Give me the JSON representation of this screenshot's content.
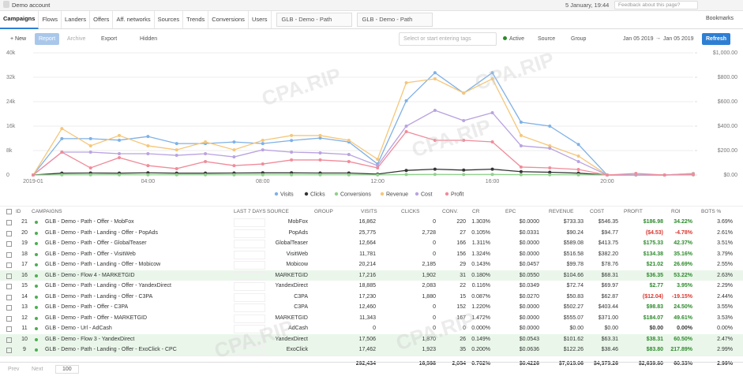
{
  "header": {
    "account": "Demo account",
    "datetime": "5 January, 19:44",
    "feedback": "Feedback about this page?",
    "bookmarks": "Bookmarks"
  },
  "tabs": [
    "Campaigns",
    "Flows",
    "Landers",
    "Offers",
    "Aff. networks",
    "Sources",
    "Trends",
    "Conversions",
    "Users"
  ],
  "open_tabs": [
    "GLB - Demo - Path",
    "GLB - Demo - Path"
  ],
  "toolbar": {
    "new": "New",
    "report": "Report",
    "archive": "Archive",
    "export": "Export",
    "hidden": "Hidden",
    "tags_placeholder": "Select or start entering tags",
    "status": "Active",
    "source": "Source",
    "group": "Group",
    "date_from": "Jan 05 2019",
    "date_to": "Jan 05 2019",
    "refresh": "Refresh"
  },
  "watermark": "CPA.RIP",
  "chart": {
    "type": "line",
    "categories": [
      "2019-01",
      null,
      null,
      null,
      "04:00",
      null,
      null,
      null,
      "08:00",
      null,
      null,
      null,
      "12:00",
      null,
      null,
      null,
      "16:00",
      null,
      null,
      null,
      "20:00",
      null,
      null,
      null
    ],
    "ylim": [
      0,
      40000
    ],
    "yticks": [
      0,
      {
        "value": 8000,
        "label": "8k"
      },
      {
        "value": 16000,
        "label": "16k"
      },
      {
        "value": 24000,
        "label": "24k"
      },
      {
        "value": 32000,
        "label": "32k"
      },
      {
        "value": 40000,
        "label": "40k"
      }
    ],
    "y2lim": [
      0,
      1000
    ],
    "y2ticks": [
      {
        "value": 0,
        "label": "$0.00"
      },
      {
        "value": 200,
        "label": "$200.00"
      },
      {
        "value": 400,
        "label": "$400.00"
      },
      {
        "value": 600,
        "label": "$600.00"
      },
      {
        "value": 800,
        "label": "$800.00"
      },
      {
        "value": 1000,
        "label": "$1,000.00"
      }
    ],
    "grid": true,
    "series": [
      {
        "name": "Visits",
        "color": "#7fb1e6",
        "values": [
          0,
          11900,
          11900,
          11400,
          12600,
          10300,
          10300,
          10800,
          10300,
          11300,
          12100,
          10800,
          3600,
          24300,
          33500,
          26800,
          33500,
          17300,
          16000,
          10000,
          0,
          0,
          0,
          500
        ]
      },
      {
        "name": "Clicks",
        "color": "#333333",
        "values": [
          0,
          600,
          650,
          600,
          700,
          600,
          600,
          650,
          700,
          700,
          650,
          650,
          300,
          1500,
          1900,
          1600,
          1900,
          1100,
          900,
          600,
          0,
          0,
          0,
          200
        ]
      },
      {
        "name": "Conversions",
        "color": "#8fd18c",
        "values": [
          0,
          60,
          65,
          60,
          70,
          60,
          60,
          65,
          70,
          70,
          65,
          65,
          30,
          150,
          190,
          160,
          190,
          110,
          90,
          60,
          0,
          0,
          0,
          20
        ]
      },
      {
        "name": "Revenue",
        "color": "#f5c77a",
        "axis": "y2",
        "values": [
          0,
          380,
          239,
          323,
          239,
          206,
          271,
          206,
          284,
          323,
          323,
          284,
          129,
          755,
          787,
          671,
          787,
          323,
          239,
          155,
          0,
          0,
          0,
          13
        ]
      },
      {
        "name": "Cost",
        "color": "#b9a3e0",
        "axis": "y2",
        "values": [
          0,
          187,
          187,
          174,
          174,
          161,
          174,
          148,
          206,
          187,
          181,
          168,
          77,
          400,
          529,
          445,
          510,
          239,
          219,
          110,
          0,
          0,
          0,
          10
        ]
      },
      {
        "name": "Profit",
        "color": "#f08c9a",
        "axis": "y2",
        "values": [
          0,
          187,
          58,
          142,
          77,
          52,
          110,
          77,
          90,
          123,
          123,
          110,
          58,
          355,
          284,
          284,
          271,
          65,
          58,
          45,
          0,
          13,
          0,
          3
        ]
      }
    ]
  },
  "table": {
    "columns": [
      "ID",
      "CAMPAIGNS",
      "LAST 7 DAYS",
      "SOURCE",
      "GROUP",
      "VISITS",
      "CLICKS",
      "CONV.",
      "CR",
      "EPC",
      "REVENUE",
      "COST",
      "PROFIT",
      "ROI",
      "BOTS %"
    ],
    "rows": [
      [
        "21",
        "GLB - Demo - Path - Offer - MobFox",
        "MobFox",
        "16,862",
        "0",
        "220",
        "1.303%",
        "$0.0000",
        "$733.33",
        "$546.35",
        "$186.98",
        "34.22%",
        "3.69%"
      ],
      [
        "20",
        "GLB - Demo - Path - Landing - Offer - PopAds",
        "PopAds",
        "25,775",
        "2,728",
        "27",
        "0.105%",
        "$0.0331",
        "$90.24",
        "$94.77",
        "($4.53)",
        "-4.78%",
        "2.61%"
      ],
      [
        "19",
        "GLB - Demo - Path - Offer - GlobalTeaser",
        "GlobalTeaser",
        "12,664",
        "0",
        "166",
        "1.311%",
        "$0.0000",
        "$589.08",
        "$413.75",
        "$175.33",
        "42.37%",
        "3.51%"
      ],
      [
        "18",
        "GLB - Demo - Path - Offer - VisitWeb",
        "VisitWeb",
        "11,781",
        "0",
        "156",
        "1.324%",
        "$0.0000",
        "$516.58",
        "$382.20",
        "$134.38",
        "35.16%",
        "3.79%"
      ],
      [
        "17",
        "GLB - Demo - Path - Landing - Offer - Mobicow",
        "Mobicow",
        "20,214",
        "2,185",
        "29",
        "0.143%",
        "$0.0457",
        "$99.78",
        "$78.76",
        "$21.02",
        "26.69%",
        "2.55%"
      ],
      [
        "16",
        "GLB - Demo - Flow 4 - MARKETGID",
        "MARKETGID",
        "17,216",
        "1,902",
        "31",
        "0.180%",
        "$0.0550",
        "$104.66",
        "$68.31",
        "$36.35",
        "53.22%",
        "2.63%"
      ],
      [
        "15",
        "GLB - Demo - Path - Landing - Offer - YandexDirect",
        "YandexDirect",
        "18,885",
        "2,083",
        "22",
        "0.116%",
        "$0.0349",
        "$72.74",
        "$69.97",
        "$2.77",
        "3.95%",
        "2.29%"
      ],
      [
        "14",
        "GLB - Demo - Path - Landing - Offer - C3PA",
        "C3PA",
        "17,230",
        "1,880",
        "15",
        "0.087%",
        "$0.0270",
        "$50.83",
        "$62.87",
        "($12.04)",
        "-19.15%",
        "2.44%"
      ],
      [
        "13",
        "GLB - Demo - Path - Offer - C3PA",
        "C3PA",
        "12,460",
        "0",
        "152",
        "1.220%",
        "$0.0000",
        "$502.27",
        "$403.44",
        "$98.83",
        "24.50%",
        "3.55%"
      ],
      [
        "12",
        "GLB - Demo - Path - Offer - MARKETGID",
        "MARKETGID",
        "11,343",
        "0",
        "167",
        "1.472%",
        "$0.0000",
        "$555.07",
        "$371.00",
        "$184.07",
        "49.61%",
        "3.53%"
      ],
      [
        "11",
        "GLB - Demo - Url - AdCash",
        "AdCash",
        "0",
        "0",
        "0",
        "0.000%",
        "$0.0000",
        "$0.00",
        "$0.00",
        "$0.00",
        "0.00%",
        "0.00%"
      ],
      [
        "10",
        "GLB - Demo - Flow 3 - YandexDirect",
        "YandexDirect",
        "17,506",
        "1,870",
        "26",
        "0.149%",
        "$0.0543",
        "$101.62",
        "$63.31",
        "$38.31",
        "60.50%",
        "2.47%"
      ],
      [
        "9",
        "GLB - Demo - Path - Landing - Offer - ExoClick - CPC",
        "ExoClick",
        "17,462",
        "1,923",
        "35",
        "0.200%",
        "$0.0636",
        "$122.26",
        "$38.46",
        "$83.80",
        "217.89%",
        "2.99%"
      ]
    ],
    "highlighted": [
      false,
      false,
      false,
      false,
      false,
      true,
      false,
      false,
      false,
      false,
      false,
      true,
      true
    ],
    "totals": [
      "292,434",
      "16,598",
      "2,054",
      "0.702%",
      "$0.4226",
      "$7,015.06",
      "$4,375.26",
      "$2,639.80",
      "60.33%",
      "2.99%"
    ]
  },
  "pagination": {
    "prev": "Prev",
    "next": "Next",
    "page_size": "100"
  }
}
